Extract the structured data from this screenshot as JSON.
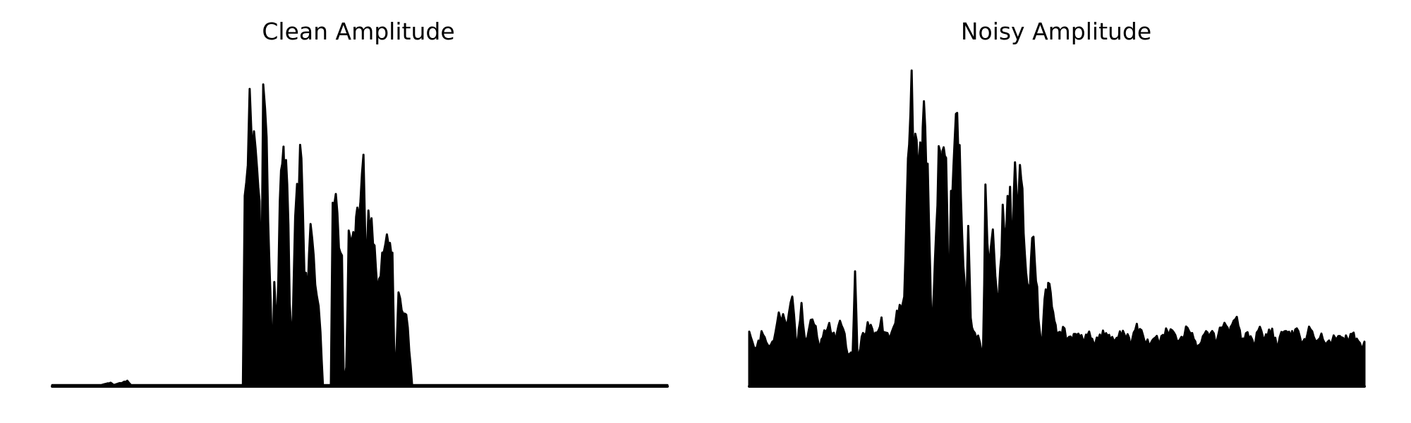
{
  "figure": {
    "background": "#ffffff",
    "line_color": "#000000"
  },
  "chart_data": [
    {
      "type": "area",
      "title": "Clean Amplitude",
      "xlabel": "",
      "ylabel": "",
      "axes_visible": false,
      "grid": false,
      "ylim": [
        0,
        1
      ],
      "x_range": [
        0,
        1
      ],
      "envelope": [
        [
          0.0,
          0.004
        ],
        [
          0.08,
          0.004
        ],
        [
          0.095,
          0.012
        ],
        [
          0.1,
          0.004
        ],
        [
          0.122,
          0.018
        ],
        [
          0.128,
          0.004
        ],
        [
          0.31,
          0.004
        ],
        [
          0.313,
          0.6
        ],
        [
          0.318,
          0.83
        ],
        [
          0.321,
          0.95
        ],
        [
          0.324,
          0.93
        ],
        [
          0.328,
          0.85
        ],
        [
          0.333,
          0.75
        ],
        [
          0.337,
          0.62
        ],
        [
          0.34,
          0.3
        ],
        [
          0.343,
          1.0
        ],
        [
          0.346,
          0.95
        ],
        [
          0.351,
          0.62
        ],
        [
          0.355,
          0.32
        ],
        [
          0.358,
          0.06
        ],
        [
          0.361,
          0.34
        ],
        [
          0.365,
          0.19
        ],
        [
          0.37,
          0.6
        ],
        [
          0.374,
          0.79
        ],
        [
          0.378,
          0.73
        ],
        [
          0.382,
          0.72
        ],
        [
          0.386,
          0.3
        ],
        [
          0.39,
          0.12
        ],
        [
          0.395,
          0.64
        ],
        [
          0.401,
          0.74
        ],
        [
          0.405,
          0.78
        ],
        [
          0.41,
          0.42
        ],
        [
          0.415,
          0.33
        ],
        [
          0.42,
          0.57
        ],
        [
          0.425,
          0.42
        ],
        [
          0.43,
          0.32
        ],
        [
          0.436,
          0.2
        ],
        [
          0.44,
          0.004
        ],
        [
          0.453,
          0.004
        ],
        [
          0.456,
          0.64
        ],
        [
          0.461,
          0.62
        ],
        [
          0.466,
          0.52
        ],
        [
          0.471,
          0.42
        ],
        [
          0.474,
          0.004
        ],
        [
          0.478,
          0.06
        ],
        [
          0.482,
          0.5
        ],
        [
          0.487,
          0.48
        ],
        [
          0.492,
          0.52
        ],
        [
          0.496,
          0.6
        ],
        [
          0.501,
          0.64
        ],
        [
          0.506,
          0.78
        ],
        [
          0.51,
          0.46
        ],
        [
          0.514,
          0.6
        ],
        [
          0.519,
          0.58
        ],
        [
          0.524,
          0.46
        ],
        [
          0.529,
          0.3
        ],
        [
          0.534,
          0.42
        ],
        [
          0.539,
          0.45
        ],
        [
          0.544,
          0.48
        ],
        [
          0.549,
          0.47
        ],
        [
          0.553,
          0.43
        ],
        [
          0.557,
          0.004
        ],
        [
          0.563,
          0.31
        ],
        [
          0.568,
          0.29
        ],
        [
          0.573,
          0.26
        ],
        [
          0.578,
          0.2
        ],
        [
          0.585,
          0.004
        ],
        [
          0.6,
          0.004
        ],
        [
          1.0,
          0.004
        ]
      ]
    },
    {
      "type": "area",
      "title": "Noisy Amplitude",
      "xlabel": "",
      "ylabel": "",
      "axes_visible": false,
      "grid": false,
      "ylim": [
        0,
        1
      ],
      "x_range": [
        0,
        1
      ],
      "envelope": [
        [
          0.0,
          0.18
        ],
        [
          0.01,
          0.13
        ],
        [
          0.02,
          0.18
        ],
        [
          0.03,
          0.14
        ],
        [
          0.04,
          0.16
        ],
        [
          0.048,
          0.27
        ],
        [
          0.055,
          0.23
        ],
        [
          0.062,
          0.2
        ],
        [
          0.07,
          0.32
        ],
        [
          0.078,
          0.13
        ],
        [
          0.085,
          0.28
        ],
        [
          0.092,
          0.14
        ],
        [
          0.1,
          0.24
        ],
        [
          0.108,
          0.2
        ],
        [
          0.115,
          0.14
        ],
        [
          0.122,
          0.18
        ],
        [
          0.13,
          0.2
        ],
        [
          0.14,
          0.17
        ],
        [
          0.15,
          0.23
        ],
        [
          0.16,
          0.12
        ],
        [
          0.168,
          0.1
        ],
        [
          0.172,
          0.38
        ],
        [
          0.176,
          0.1
        ],
        [
          0.185,
          0.18
        ],
        [
          0.195,
          0.21
        ],
        [
          0.205,
          0.17
        ],
        [
          0.215,
          0.22
        ],
        [
          0.222,
          0.17
        ],
        [
          0.232,
          0.18
        ],
        [
          0.24,
          0.25
        ],
        [
          0.247,
          0.27
        ],
        [
          0.252,
          0.3
        ],
        [
          0.256,
          0.58
        ],
        [
          0.26,
          0.86
        ],
        [
          0.264,
          1.0
        ],
        [
          0.268,
          0.85
        ],
        [
          0.272,
          0.8
        ],
        [
          0.276,
          0.86
        ],
        [
          0.28,
          0.7
        ],
        [
          0.284,
          0.96
        ],
        [
          0.288,
          0.8
        ],
        [
          0.292,
          0.62
        ],
        [
          0.296,
          0.22
        ],
        [
          0.3,
          0.3
        ],
        [
          0.304,
          0.5
        ],
        [
          0.308,
          0.84
        ],
        [
          0.312,
          0.78
        ],
        [
          0.316,
          0.82
        ],
        [
          0.32,
          0.76
        ],
        [
          0.324,
          0.3
        ],
        [
          0.328,
          0.62
        ],
        [
          0.332,
          0.78
        ],
        [
          0.336,
          0.92
        ],
        [
          0.34,
          0.82
        ],
        [
          0.344,
          0.7
        ],
        [
          0.348,
          0.46
        ],
        [
          0.352,
          0.2
        ],
        [
          0.356,
          0.58
        ],
        [
          0.36,
          0.25
        ],
        [
          0.364,
          0.2
        ],
        [
          0.372,
          0.16
        ],
        [
          0.38,
          0.12
        ],
        [
          0.384,
          0.64
        ],
        [
          0.39,
          0.45
        ],
        [
          0.396,
          0.52
        ],
        [
          0.4,
          0.38
        ],
        [
          0.404,
          0.28
        ],
        [
          0.408,
          0.4
        ],
        [
          0.412,
          0.58
        ],
        [
          0.416,
          0.5
        ],
        [
          0.42,
          0.62
        ],
        [
          0.424,
          0.66
        ],
        [
          0.428,
          0.48
        ],
        [
          0.432,
          0.74
        ],
        [
          0.436,
          0.58
        ],
        [
          0.44,
          0.7
        ],
        [
          0.444,
          0.65
        ],
        [
          0.448,
          0.45
        ],
        [
          0.452,
          0.38
        ],
        [
          0.456,
          0.3
        ],
        [
          0.46,
          0.51
        ],
        [
          0.464,
          0.45
        ],
        [
          0.468,
          0.32
        ],
        [
          0.472,
          0.2
        ],
        [
          0.476,
          0.15
        ],
        [
          0.48,
          0.32
        ],
        [
          0.484,
          0.3
        ],
        [
          0.488,
          0.38
        ],
        [
          0.492,
          0.3
        ],
        [
          0.496,
          0.22
        ],
        [
          0.5,
          0.17
        ],
        [
          0.51,
          0.19
        ],
        [
          0.52,
          0.16
        ],
        [
          0.53,
          0.18
        ],
        [
          0.54,
          0.17
        ],
        [
          0.55,
          0.18
        ],
        [
          0.56,
          0.15
        ],
        [
          0.57,
          0.17
        ],
        [
          0.58,
          0.19
        ],
        [
          0.59,
          0.16
        ],
        [
          0.6,
          0.18
        ],
        [
          0.61,
          0.19
        ],
        [
          0.62,
          0.14
        ],
        [
          0.63,
          0.2
        ],
        [
          0.64,
          0.17
        ],
        [
          0.65,
          0.14
        ],
        [
          0.66,
          0.18
        ],
        [
          0.67,
          0.16
        ],
        [
          0.68,
          0.2
        ],
        [
          0.69,
          0.17
        ],
        [
          0.7,
          0.15
        ],
        [
          0.71,
          0.19
        ],
        [
          0.72,
          0.17
        ],
        [
          0.73,
          0.13
        ],
        [
          0.74,
          0.19
        ],
        [
          0.75,
          0.18
        ],
        [
          0.76,
          0.16
        ],
        [
          0.77,
          0.22
        ],
        [
          0.78,
          0.18
        ],
        [
          0.79,
          0.24
        ],
        [
          0.8,
          0.16
        ],
        [
          0.81,
          0.18
        ],
        [
          0.82,
          0.15
        ],
        [
          0.83,
          0.19
        ],
        [
          0.84,
          0.17
        ],
        [
          0.85,
          0.19
        ],
        [
          0.86,
          0.14
        ],
        [
          0.87,
          0.21
        ],
        [
          0.88,
          0.17
        ],
        [
          0.89,
          0.19
        ],
        [
          0.9,
          0.15
        ],
        [
          0.91,
          0.2
        ],
        [
          0.92,
          0.16
        ],
        [
          0.93,
          0.18
        ],
        [
          0.94,
          0.14
        ],
        [
          0.95,
          0.17
        ],
        [
          0.96,
          0.19
        ],
        [
          0.97,
          0.16
        ],
        [
          0.98,
          0.18
        ],
        [
          0.99,
          0.15
        ],
        [
          1.0,
          0.14
        ]
      ]
    }
  ]
}
